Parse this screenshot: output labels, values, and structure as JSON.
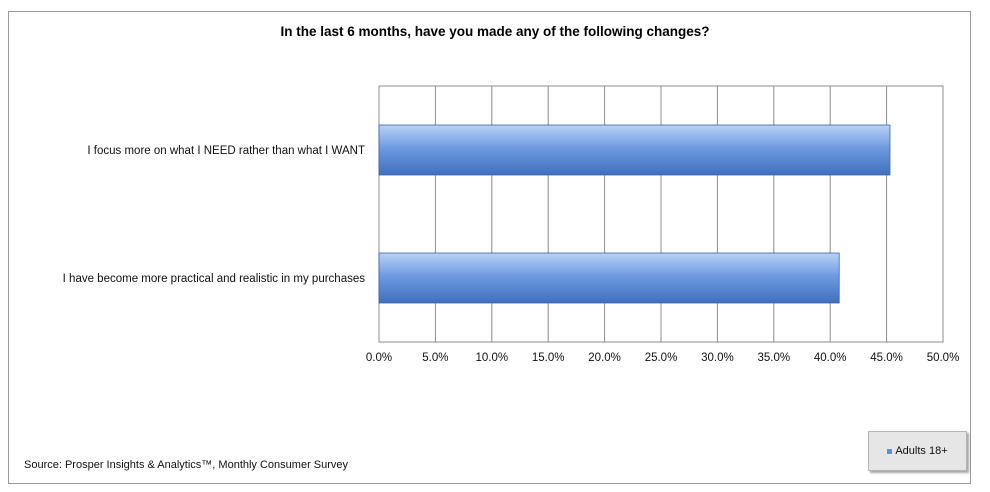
{
  "chart_data": {
    "type": "bar",
    "orientation": "horizontal",
    "title": "In the last 6 months, have you made any of the following changes?",
    "categories": [
      "I focus more on what I NEED rather than what I WANT",
      "I have become more practical and realistic in my purchases"
    ],
    "series": [
      {
        "name": "Adults 18+",
        "values": [
          45.3,
          40.8
        ]
      }
    ],
    "xlim": [
      0,
      50
    ],
    "x_ticks": [
      "0.0%",
      "5.0%",
      "10.0%",
      "15.0%",
      "20.0%",
      "25.0%",
      "30.0%",
      "35.0%",
      "40.0%",
      "45.0%",
      "50.0%"
    ],
    "grid": true,
    "legend_position": "bottom-right",
    "bar_color": "#5f8fd6"
  },
  "source_note": "Source: Prosper Insights & Analytics™, Monthly Consumer Survey"
}
